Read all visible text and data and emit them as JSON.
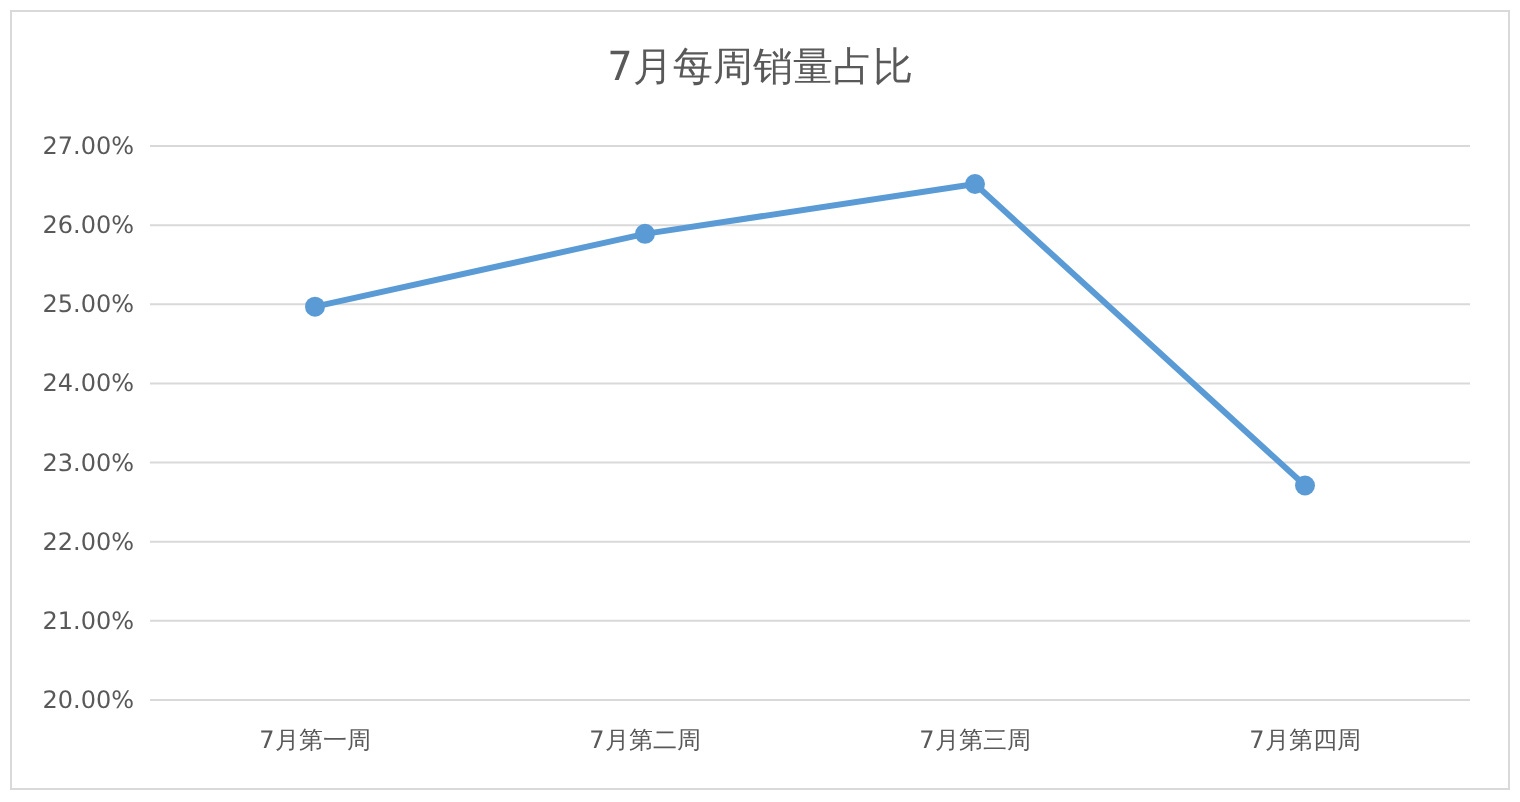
{
  "chart_data": {
    "type": "line",
    "title": "7月每周销量占比",
    "categories": [
      "7月第一周",
      "7月第二周",
      "7月第三周",
      "7月第四周"
    ],
    "values": [
      24.97,
      25.89,
      26.52,
      22.71
    ],
    "color": "#5b9bd5",
    "ylim": [
      20,
      27
    ],
    "yticks": [
      {
        "value": 20,
        "label": "20.00%"
      },
      {
        "value": 21,
        "label": "21.00%"
      },
      {
        "value": 22,
        "label": "22.00%"
      },
      {
        "value": 23,
        "label": "23.00%"
      },
      {
        "value": 24,
        "label": "24.00%"
      },
      {
        "value": 25,
        "label": "25.00%"
      },
      {
        "value": 26,
        "label": "26.00%"
      },
      {
        "value": 27,
        "label": "27.00%"
      }
    ],
    "grid": "y",
    "marker": "circle"
  }
}
